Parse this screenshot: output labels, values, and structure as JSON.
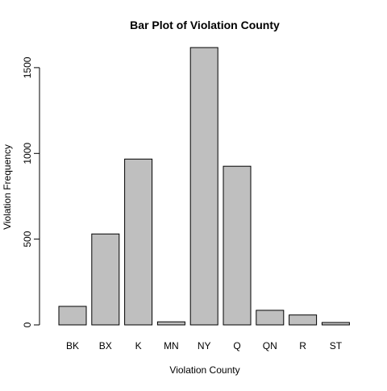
{
  "chart_data": {
    "type": "bar",
    "title": "Bar Plot of Violation County",
    "xlabel": "Violation County",
    "ylabel": "Violation Frequency",
    "categories": [
      "BK",
      "BX",
      "K",
      "MN",
      "NY",
      "Q",
      "QN",
      "R",
      "ST"
    ],
    "values": [
      108,
      530,
      967,
      18,
      1617,
      925,
      85,
      58,
      14
    ],
    "ylim": [
      0,
      1617
    ],
    "yticks": [
      0,
      500,
      1000,
      1500
    ],
    "grid": false,
    "legend": "none",
    "colors": {
      "bar_fill": "#bfbfbf",
      "bar_stroke": "#000000",
      "background": "#ffffff"
    }
  }
}
